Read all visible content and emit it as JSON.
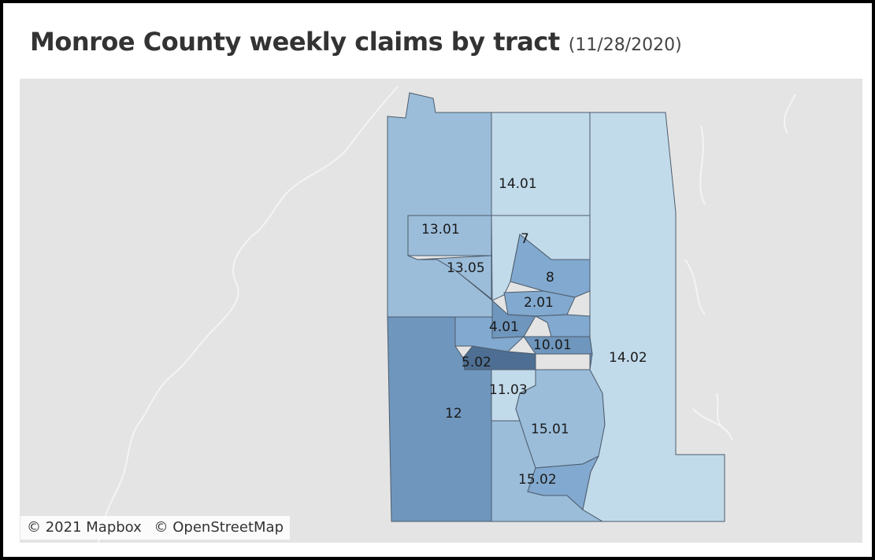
{
  "title": {
    "main": "Monroe County weekly claims by tract",
    "date": "(11/28/2020)"
  },
  "colors": {
    "lightest": "#c2dbeb",
    "light": "#9bbdda",
    "medium": "#82a9cf",
    "dark": "#6f96bd",
    "darkest": "#4e6f93"
  },
  "tracts": [
    {
      "id": "14.01",
      "label": "14.01",
      "shade": "lightest"
    },
    {
      "id": "13.01",
      "label": "13.01",
      "shade": "light"
    },
    {
      "id": "13.05",
      "label": "13.05",
      "shade": "light"
    },
    {
      "id": "7",
      "label": "7",
      "shade": "lightest"
    },
    {
      "id": "8",
      "label": "8",
      "shade": "medium"
    },
    {
      "id": "2.01",
      "label": "2.01",
      "shade": "medium"
    },
    {
      "id": "4.01",
      "label": "4.01",
      "shade": "dark"
    },
    {
      "id": "10.01",
      "label": "10.01",
      "shade": "dark"
    },
    {
      "id": "5.02",
      "label": "5.02",
      "shade": "darkest"
    },
    {
      "id": "11.03",
      "label": "11.03",
      "shade": "lightest"
    },
    {
      "id": "12",
      "label": "12",
      "shade": "dark"
    },
    {
      "id": "15.01",
      "label": "15.01",
      "shade": "light"
    },
    {
      "id": "15.02",
      "label": "15.02",
      "shade": "medium"
    },
    {
      "id": "14.02",
      "label": "14.02",
      "shade": "lightest"
    }
  ],
  "attribution": {
    "mapbox": "© 2021 Mapbox",
    "osm": "© OpenStreetMap"
  }
}
